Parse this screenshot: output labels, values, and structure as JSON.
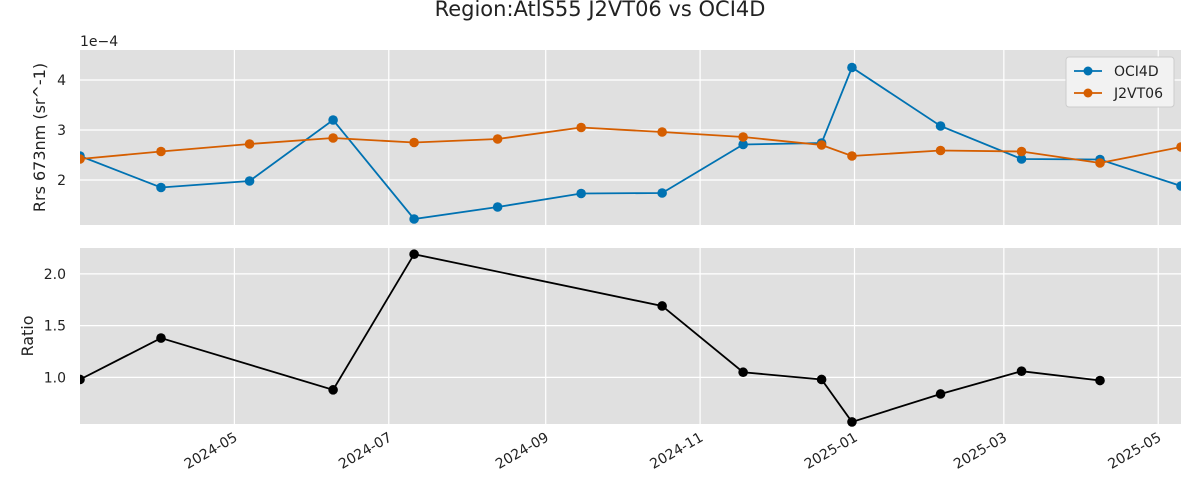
{
  "chart_data": {
    "title": "Region:AtlS55 J2VT06 vs OCI4D",
    "x_ticks": [
      "2024-05",
      "2024-07",
      "2024-09",
      "2024-11",
      "2025-01",
      "2025-03",
      "2025-05"
    ],
    "grid": true,
    "panels": [
      {
        "type": "line",
        "ylabel": "Rrs 673nm (sr^-1)",
        "y_offset_label": "1e−4",
        "y_scale": "1e-4",
        "ylim": [
          1.1,
          4.6
        ],
        "y_ticks": [
          {
            "value": 2,
            "label": "2"
          },
          {
            "value": 3,
            "label": "3"
          },
          {
            "value": 4,
            "label": "4"
          }
        ],
        "legend": "top-right",
        "series": [
          {
            "name": "OCI4D",
            "color": "#0072b2",
            "points": [
              [
                "2024-03-01",
                2.48
              ],
              [
                "2024-04-02",
                1.85
              ],
              [
                "2024-05-07",
                1.98
              ],
              [
                "2024-06-09",
                3.2
              ],
              [
                "2024-07-11",
                1.22
              ],
              [
                "2024-08-13",
                1.46
              ],
              [
                "2024-09-15",
                1.73
              ],
              [
                "2024-10-17",
                1.74
              ],
              [
                "2024-11-18",
                2.71
              ],
              [
                "2024-12-19",
                2.74
              ],
              [
                "2024-12-31",
                4.25
              ],
              [
                "2025-02-04",
                3.08
              ],
              [
                "2025-03-08",
                2.42
              ],
              [
                "2025-04-08",
                2.41
              ],
              [
                "2025-05-10",
                1.88
              ]
            ]
          },
          {
            "name": "J2VT06",
            "color": "#d55e00",
            "points": [
              [
                "2024-03-01",
                2.42
              ],
              [
                "2024-04-02",
                2.57
              ],
              [
                "2024-05-07",
                2.72
              ],
              [
                "2024-06-09",
                2.84
              ],
              [
                "2024-07-11",
                2.75
              ],
              [
                "2024-08-13",
                2.82
              ],
              [
                "2024-09-15",
                3.05
              ],
              [
                "2024-10-17",
                2.96
              ],
              [
                "2024-11-18",
                2.86
              ],
              [
                "2024-12-19",
                2.7
              ],
              [
                "2024-12-31",
                2.48
              ],
              [
                "2025-02-04",
                2.59
              ],
              [
                "2025-03-08",
                2.57
              ],
              [
                "2025-04-08",
                2.34
              ],
              [
                "2025-05-10",
                2.66
              ]
            ]
          }
        ]
      },
      {
        "type": "line",
        "ylabel": "Ratio",
        "ylim": [
          0.55,
          2.25
        ],
        "y_ticks": [
          {
            "value": 1.0,
            "label": "1.0"
          },
          {
            "value": 1.5,
            "label": "1.5"
          },
          {
            "value": 2.0,
            "label": "2.0"
          }
        ],
        "series": [
          {
            "color": "#000000",
            "points": [
              [
                "2024-03-01",
                0.98
              ],
              [
                "2024-04-02",
                1.38
              ],
              [
                "2024-06-09",
                0.88
              ],
              [
                "2024-07-11",
                2.19
              ],
              [
                "2024-10-17",
                1.69
              ],
              [
                "2024-11-18",
                1.05
              ],
              [
                "2024-12-19",
                0.98
              ],
              [
                "2024-12-31",
                0.57
              ],
              [
                "2025-02-04",
                0.84
              ],
              [
                "2025-03-08",
                1.06
              ],
              [
                "2025-04-08",
                0.97
              ]
            ]
          }
        ]
      }
    ]
  }
}
